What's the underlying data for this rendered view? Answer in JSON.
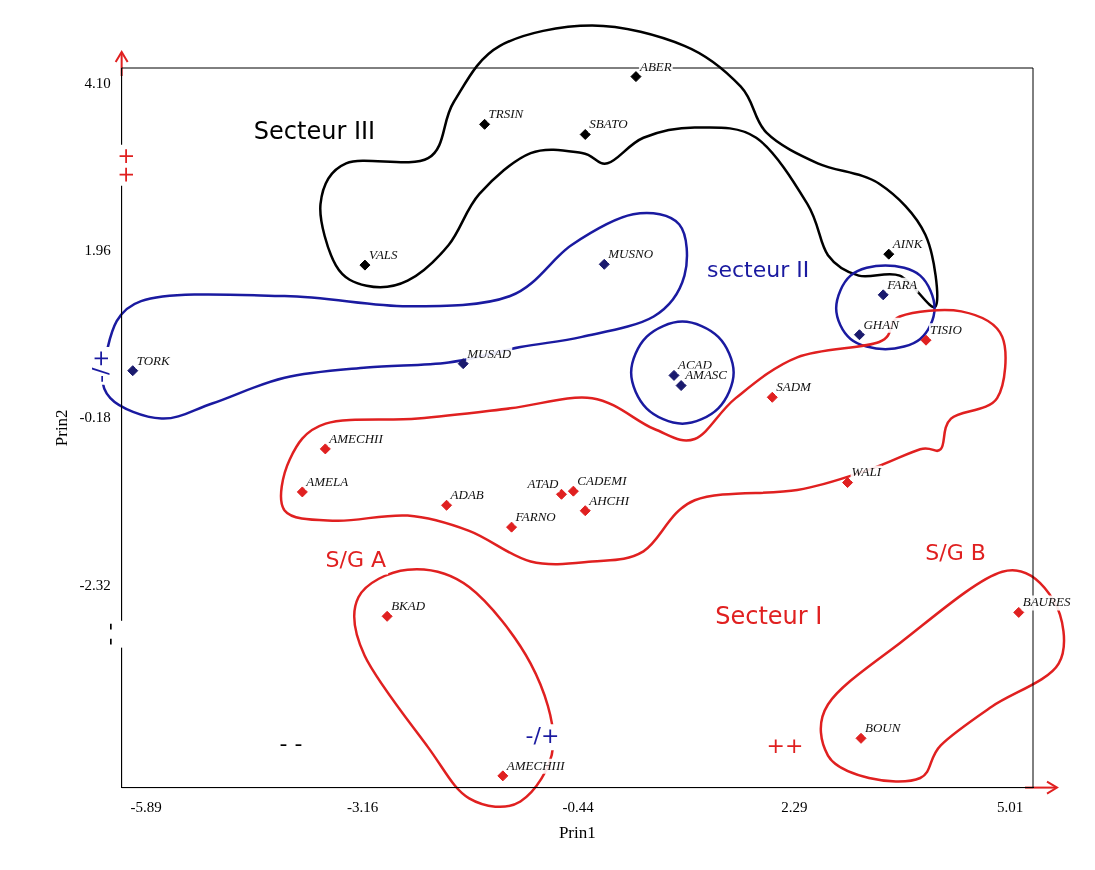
{
  "chart_data": {
    "type": "scatter",
    "xlabel": "Prin1",
    "ylabel": "Prin2",
    "xlim": [
      -6.2,
      5.3
    ],
    "ylim": [
      -4.9,
      4.3
    ],
    "xticks": [
      -5.89,
      -3.16,
      -0.44,
      2.29,
      5.01
    ],
    "yticks": [
      {
        "value": 4.1,
        "label": "4.10"
      },
      1.96,
      -0.18,
      -2.32
    ],
    "grid": false,
    "legend": false,
    "marker": "diamond",
    "series": [
      {
        "color": "#000000",
        "x": [
          0.29,
          -1.62,
          -0.35,
          -3.13,
          3.48
        ],
        "values": [
          4.19,
          3.58,
          3.45,
          1.78,
          1.92
        ]
      },
      {
        "color": "#1a1a6e",
        "x": [
          -0.11,
          3.41,
          3.11,
          -6.06,
          -1.89,
          0.77,
          0.86
        ],
        "values": [
          1.79,
          1.4,
          0.89,
          0.43,
          0.52,
          0.37,
          0.24
        ]
      },
      {
        "color": "#e02020",
        "x": [
          3.95,
          2.01,
          -3.63,
          -3.92,
          -2.1,
          -0.65,
          -0.5,
          -0.35,
          -1.28,
          2.96,
          -2.85,
          5.12,
          3.13,
          -1.39
        ],
        "values": [
          0.82,
          0.09,
          -0.57,
          -1.12,
          -1.29,
          -1.15,
          -1.11,
          -1.36,
          -1.57,
          -1,
          -2.71,
          -2.66,
          -4.27,
          -4.75
        ]
      }
    ],
    "annotations": [
      {
        "text": "ABER",
        "x": 0.29,
        "y": 4.19
      },
      {
        "text": "TRSIN",
        "x": -1.62,
        "y": 3.58
      },
      {
        "text": "SBATO",
        "x": -0.35,
        "y": 3.45
      },
      {
        "text": "VALS",
        "x": -3.13,
        "y": 1.78
      },
      {
        "text": "AINK",
        "x": 3.48,
        "y": 1.92
      },
      {
        "text": "MUSNO",
        "x": -0.11,
        "y": 1.79
      },
      {
        "text": "FARA",
        "x": 3.41,
        "y": 1.4
      },
      {
        "text": "GHAN",
        "x": 3.11,
        "y": 0.89
      },
      {
        "text": "TORK",
        "x": -6.06,
        "y": 0.43
      },
      {
        "text": "MUSAD",
        "x": -1.89,
        "y": 0.52
      },
      {
        "text": "ACAD",
        "x": 0.77,
        "y": 0.37
      },
      {
        "text": "AMASC",
        "x": 0.86,
        "y": 0.24
      },
      {
        "text": "TISIO",
        "x": 3.95,
        "y": 0.82
      },
      {
        "text": "SADM",
        "x": 2.01,
        "y": 0.09
      },
      {
        "text": "AMECHII",
        "x": -3.63,
        "y": -0.57
      },
      {
        "text": "AMELA",
        "x": -3.92,
        "y": -1.12
      },
      {
        "text": "ADAB",
        "x": -2.1,
        "y": -1.29
      },
      {
        "text": "ATAD",
        "x": -0.65,
        "y": -1.15
      },
      {
        "text": "CADEMI",
        "x": -0.5,
        "y": -1.11
      },
      {
        "text": "AHCHI",
        "x": -0.35,
        "y": -1.36
      },
      {
        "text": "FARNO",
        "x": -1.28,
        "y": -1.57
      },
      {
        "text": "WALI",
        "x": 2.96,
        "y": -1
      },
      {
        "text": "BKAD",
        "x": -2.85,
        "y": -2.71
      },
      {
        "text": "BAURES",
        "x": 5.12,
        "y": -2.66
      },
      {
        "text": "BOUN",
        "x": 3.13,
        "y": -4.27
      },
      {
        "text": "AMECHIII",
        "x": -1.39,
        "y": -4.75
      },
      "Secteur III",
      "secteur II",
      "Secteur I",
      "S/G A",
      "S/G B",
      "++",
      "-/+",
      "- -",
      "- -",
      "-/+",
      "++"
    ]
  }
}
